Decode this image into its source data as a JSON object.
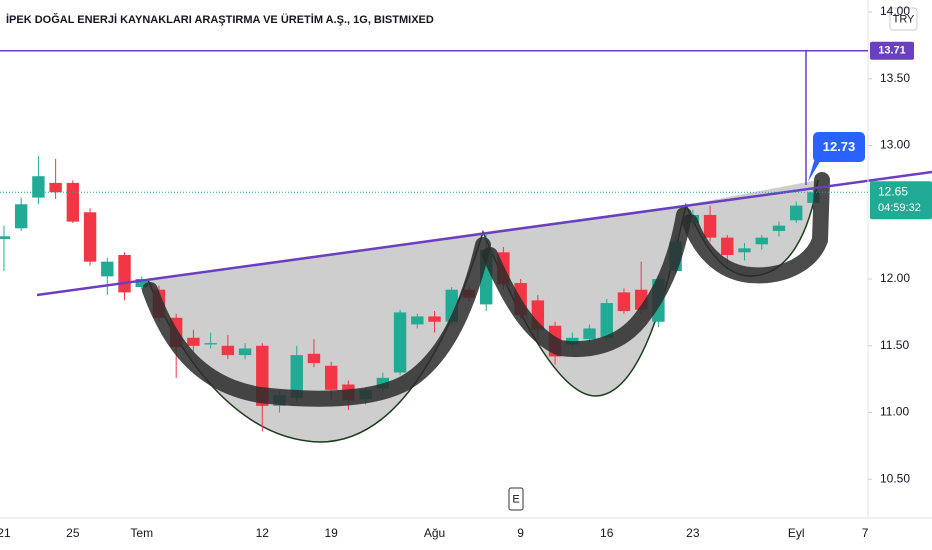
{
  "chart_data": {
    "type": "candlestick",
    "title": "İPEK DOĞAL ENERJİ KAYNAKLARI ARAŞTIRMA VE ÜRETİM A.Ş., 1G, BISTMIXED",
    "currency": "TRY",
    "x": [
      0,
      1,
      2,
      3,
      4,
      5,
      6,
      7,
      8,
      9,
      10,
      11,
      12,
      13,
      14,
      15,
      16,
      17,
      18,
      19,
      20,
      21,
      22,
      23,
      24,
      25,
      26,
      27,
      28,
      29,
      30,
      31,
      32,
      33,
      34,
      35,
      36,
      37,
      38,
      39,
      40,
      41,
      42,
      43,
      44,
      45,
      46,
      47
    ],
    "open": [
      12.3,
      12.38,
      12.61,
      12.72,
      12.72,
      12.5,
      12.02,
      12.18,
      11.94,
      11.92,
      11.71,
      11.56,
      11.51,
      11.5,
      11.43,
      11.5,
      11.05,
      11.11,
      11.44,
      11.35,
      11.21,
      11.1,
      11.18,
      11.3,
      11.66,
      11.72,
      11.68,
      11.92,
      11.81,
      12.2,
      11.97,
      11.84,
      11.65,
      11.51,
      11.55,
      11.56,
      11.9,
      11.92,
      11.68,
      12.06,
      12.42,
      12.48,
      12.31,
      12.2,
      12.26,
      12.36,
      12.44,
      12.57
    ],
    "high": [
      12.4,
      12.61,
      12.92,
      12.9,
      12.74,
      12.53,
      12.16,
      12.2,
      12.02,
      11.95,
      11.74,
      11.62,
      11.6,
      11.58,
      11.52,
      11.52,
      11.16,
      11.5,
      11.55,
      11.38,
      11.24,
      11.19,
      11.3,
      11.77,
      11.74,
      11.76,
      11.94,
      11.95,
      12.33,
      12.24,
      12.0,
      11.88,
      11.68,
      11.6,
      11.66,
      11.85,
      11.93,
      12.13,
      12.03,
      12.33,
      12.52,
      12.55,
      12.33,
      12.27,
      12.33,
      12.43,
      12.58,
      12.68
    ],
    "low": [
      12.06,
      12.36,
      12.56,
      12.6,
      12.42,
      12.1,
      11.88,
      11.84,
      11.92,
      11.68,
      11.26,
      11.46,
      11.48,
      11.4,
      11.4,
      10.86,
      11.0,
      11.08,
      11.34,
      11.1,
      11.02,
      11.06,
      11.15,
      11.28,
      11.63,
      11.6,
      11.66,
      11.83,
      11.76,
      11.92,
      11.7,
      11.55,
      11.36,
      11.48,
      11.52,
      11.54,
      11.74,
      11.74,
      11.64,
      12.04,
      12.38,
      12.28,
      12.12,
      12.14,
      12.22,
      12.32,
      12.42,
      12.52
    ],
    "close": [
      12.32,
      12.56,
      12.77,
      12.65,
      12.43,
      12.13,
      12.13,
      11.9,
      12.0,
      11.71,
      11.49,
      11.5,
      11.52,
      11.43,
      11.48,
      11.05,
      11.13,
      11.43,
      11.37,
      11.17,
      11.09,
      11.17,
      11.26,
      11.75,
      11.72,
      11.68,
      11.92,
      11.86,
      12.22,
      11.96,
      11.73,
      11.62,
      11.42,
      11.56,
      11.63,
      11.82,
      11.76,
      11.77,
      12.0,
      12.28,
      12.48,
      12.31,
      12.18,
      12.23,
      12.31,
      12.4,
      12.55,
      12.65
    ],
    "up_color": "#22ab94",
    "down_color": "#f23645",
    "xlim": [
      -0.23,
      50.17
    ],
    "xticks": [
      {
        "value": 0,
        "label": "21"
      },
      {
        "value": 4,
        "label": "25"
      },
      {
        "value": 8,
        "label": "Tem"
      },
      {
        "value": 15,
        "label": "12"
      },
      {
        "value": 19,
        "label": "19"
      },
      {
        "value": 25,
        "label": "Ağu"
      },
      {
        "value": 30,
        "label": "9"
      },
      {
        "value": 35,
        "label": "16"
      },
      {
        "value": 40,
        "label": "23"
      },
      {
        "value": 46,
        "label": "Eyl"
      },
      {
        "value": 50,
        "label": "7"
      }
    ],
    "ylim": [
      10.21,
      14.09
    ],
    "yticks": [
      {
        "value": 10.5,
        "label": "10.50"
      },
      {
        "value": 11,
        "label": "11.00"
      },
      {
        "value": 11.5,
        "label": "11.50"
      },
      {
        "value": 12,
        "label": "12.00"
      },
      {
        "value": 13,
        "label": "13.00"
      },
      {
        "value": 13.5,
        "label": "13.50"
      },
      {
        "value": 14,
        "label": "14.00"
      }
    ],
    "grid": false,
    "target_price": 13.71,
    "last_price": 12.65,
    "countdown": "04:59:32",
    "callout_price": 12.73,
    "event_marker": "E"
  }
}
